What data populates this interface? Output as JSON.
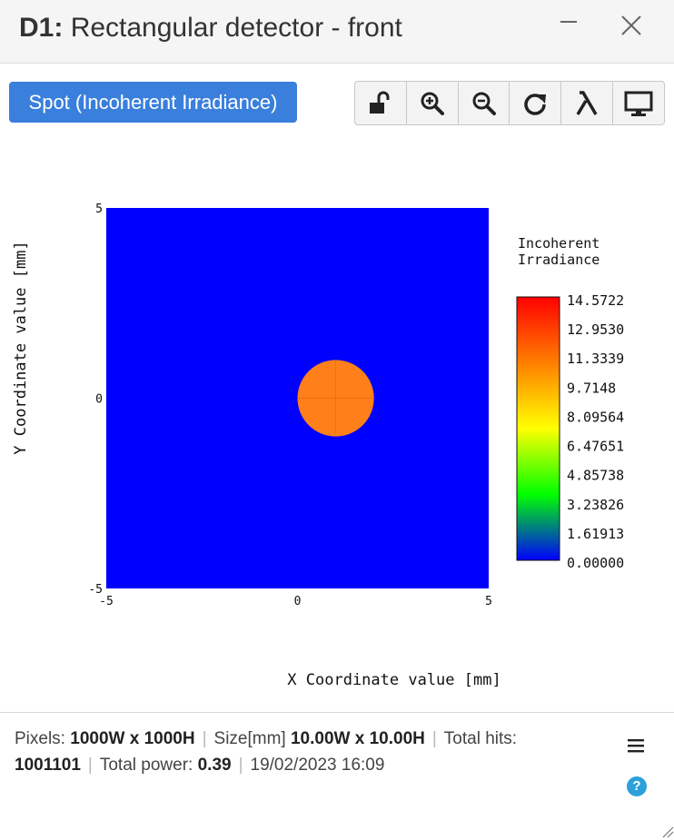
{
  "window": {
    "title_id": "D1:",
    "title_text": "Rectangular detector - front"
  },
  "toolbar": {
    "mode_label": "Spot (Incoherent Irradiance)",
    "tools": [
      "unlock-icon",
      "zoom-in-icon",
      "zoom-out-icon",
      "refresh-icon",
      "lambda-icon",
      "monitor-icon"
    ]
  },
  "chart_data": {
    "type": "heatmap",
    "xlabel": "X Coordinate value [mm]",
    "ylabel": "Y Coordinate value [mm]",
    "xlim": [
      -5,
      5
    ],
    "ylim": [
      -5,
      5
    ],
    "x_ticks": [
      "-5",
      "0",
      "5"
    ],
    "y_ticks": [
      "5",
      "0",
      "-5"
    ],
    "background_value": 0.0,
    "spot": {
      "center_x": 1.0,
      "center_y": 0.0,
      "radius": 1.0,
      "value": 11.3
    },
    "colorbar": {
      "title_line1": "Incoherent",
      "title_line2": "Irradiance",
      "ticks": [
        "14.5722",
        "12.9530",
        "11.3339",
        "9.7148",
        "8.09564",
        "6.47651",
        "4.85738",
        "3.23826",
        "1.61913",
        "0.00000"
      ],
      "min": 0.0,
      "max": 14.5722,
      "colors": [
        "#0000ff",
        "#00ff00",
        "#ffff00",
        "#ff7f00",
        "#ff0000"
      ],
      "spot_color": "#ff7f1a"
    }
  },
  "status": {
    "pixels_label": "Pixels:",
    "pixels_value": "1000W x 1000H",
    "size_label": "Size[mm]",
    "size_value": "10.00W x 10.00H",
    "hits_label": "Total hits:",
    "hits_value": "1001101",
    "power_label": "Total power:",
    "power_value": "0.39",
    "datetime": "19/02/2023 16:09"
  }
}
